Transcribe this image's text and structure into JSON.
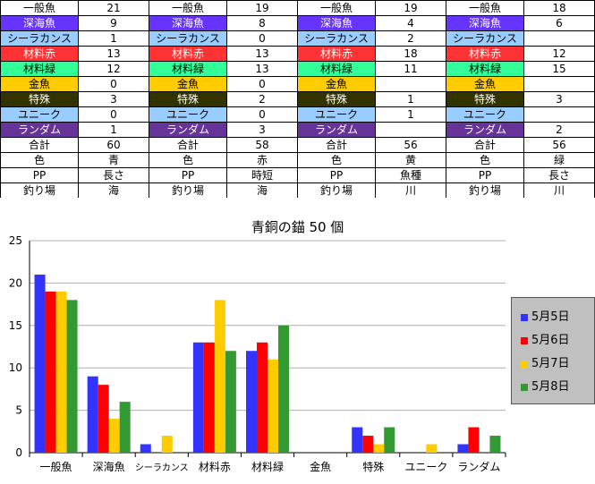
{
  "sheet": {
    "rows": [
      {
        "label": "一般魚",
        "bg": "#ffffff",
        "fg": "#000000",
        "values": [
          "21",
          "19",
          "19",
          "18"
        ]
      },
      {
        "label": "深海魚",
        "bg": "#6633ff",
        "fg": "#ffffff",
        "values": [
          "9",
          "8",
          "4",
          "6"
        ]
      },
      {
        "label": "シーラカンス",
        "bg": "#99ccff",
        "fg": "#000000",
        "values": [
          "1",
          "0",
          "2",
          ""
        ]
      },
      {
        "label": "材料赤",
        "bg": "#ff3333",
        "fg": "#ffffff",
        "values": [
          "13",
          "13",
          "18",
          "12"
        ]
      },
      {
        "label": "材料緑",
        "bg": "#33ff99",
        "fg": "#000000",
        "values": [
          "12",
          "13",
          "11",
          "15"
        ]
      },
      {
        "label": "金魚",
        "bg": "#ffcc00",
        "fg": "#000000",
        "values": [
          "0",
          "0",
          "",
          ""
        ]
      },
      {
        "label": "特殊",
        "bg": "#333300",
        "fg": "#ffffff",
        "values": [
          "3",
          "2",
          "1",
          "3"
        ]
      },
      {
        "label": "ユニーク",
        "bg": "#99ccff",
        "fg": "#000000",
        "values": [
          "0",
          "0",
          "1",
          ""
        ]
      },
      {
        "label": "ランダム",
        "bg": "#663399",
        "fg": "#ffffff",
        "values": [
          "1",
          "3",
          "",
          "2"
        ]
      },
      {
        "label": "合計",
        "bg": "#ffffff",
        "fg": "#000000",
        "values": [
          "60",
          "58",
          "56",
          "56"
        ]
      },
      {
        "label": "色",
        "bg": "#ffffff",
        "fg": "#000000",
        "values": [
          "青",
          "赤",
          "黄",
          "緑"
        ]
      },
      {
        "label": "PP",
        "bg": "#ffffff",
        "fg": "#000000",
        "values": [
          "長さ",
          "時短",
          "魚種",
          "長さ"
        ]
      },
      {
        "label": "釣り場",
        "bg": "#ffffff",
        "fg": "#000000",
        "values": [
          "海",
          "海",
          "川",
          "川"
        ]
      }
    ]
  },
  "chart_data": {
    "type": "bar",
    "title": "青銅の錨 50 個",
    "categories": [
      "一般魚",
      "深海魚",
      "シーラカンス",
      "材料赤",
      "材料緑",
      "金魚",
      "特殊",
      "ユニーク",
      "ランダム"
    ],
    "series": [
      {
        "name": "5月5日",
        "color": "#3333ff",
        "values": [
          21,
          9,
          1,
          13,
          12,
          0,
          3,
          0,
          1
        ]
      },
      {
        "name": "5月6日",
        "color": "#ff0000",
        "values": [
          19,
          8,
          0,
          13,
          13,
          0,
          2,
          0,
          3
        ]
      },
      {
        "name": "5月7日",
        "color": "#ffcc00",
        "values": [
          19,
          4,
          2,
          18,
          11,
          0,
          1,
          1,
          0
        ]
      },
      {
        "name": "5月8日",
        "color": "#339933",
        "values": [
          18,
          6,
          0,
          12,
          15,
          0,
          3,
          0,
          2
        ]
      }
    ],
    "ylim": [
      0,
      25
    ],
    "yticks": [
      0,
      5,
      10,
      15,
      20,
      25
    ],
    "grid": true,
    "legend_position": "right"
  }
}
